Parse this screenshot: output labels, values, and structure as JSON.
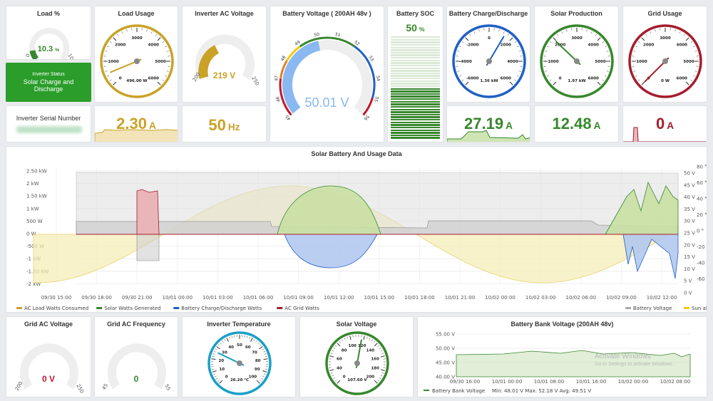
{
  "colors": {
    "gold": "#c9a227",
    "green": "#37872d",
    "blue": "#1f60c4",
    "red": "#a51d2d",
    "cyan": "#1a9fc8",
    "orange": "#e67e22",
    "statusBg": "#2a9d2a",
    "yellowFill": "#f2e9a8",
    "greenFill": "#c9dfa3",
    "blueFill": "#aec5ef",
    "redFill": "#e9b5b8",
    "grayFill": "#d9d9d9"
  },
  "load_pct": {
    "title": "Load %",
    "value": "10.3",
    "unit": "%",
    "min": "0",
    "max": "100",
    "fraction": 0.103
  },
  "inverter_status": {
    "label": "Inverter Status",
    "value": "Solar Charge and Discharge"
  },
  "serial": {
    "title": "Inverter Serial Number"
  },
  "load_usage": {
    "title": "Load Usage",
    "readout": "496.00 W",
    "scale": [
      "0",
      "1000",
      "2000",
      "3000",
      "4000",
      "5000",
      "6000"
    ],
    "value": 496
  },
  "load_current": {
    "value": "2.30",
    "unit": "A"
  },
  "inverter_ac_voltage": {
    "title": "Inverter AC Voltage",
    "value": "219 V",
    "min": "200",
    "max": "250",
    "fraction": 0.38
  },
  "ac_freq_stat": {
    "value": "50",
    "unit": "Hz"
  },
  "battery_voltage": {
    "title": "Battery Voltage ( 200AH 48v )",
    "value": "50.01 V",
    "ticks": [
      "45",
      "46",
      "47",
      "48",
      "49",
      "50",
      "51",
      "52",
      "53",
      "54",
      "55",
      "56"
    ]
  },
  "battery_soc": {
    "title": "Battery SOC",
    "value": "50",
    "unit": "%",
    "fraction": 0.5
  },
  "battery_charge": {
    "title": "Battery Charge/Discharge",
    "readout": "1.36 kW",
    "scale": [
      "-6000",
      "-4000",
      "-2000",
      "0",
      "2000",
      "4000",
      "6000"
    ],
    "value": 1360
  },
  "battery_current": {
    "value": "27.19",
    "unit": "A"
  },
  "solar_production": {
    "title": "Solar Production",
    "readout": "1.97 kW",
    "scale": [
      "0",
      "1000",
      "2000",
      "3000",
      "4000",
      "5000",
      "6000"
    ],
    "value": 1970
  },
  "solar_current": {
    "value": "12.48",
    "unit": "A"
  },
  "grid_usage": {
    "title": "Grid Usage",
    "readout": "0 W",
    "scale": [
      "0",
      "1000",
      "2000",
      "3000",
      "4000",
      "5000",
      "6000"
    ],
    "value": 0
  },
  "grid_current": {
    "value": "0",
    "unit": "A"
  },
  "main_chart": {
    "title": "Solar Battery And Usage Data",
    "y_left": [
      "2.50 kW",
      "2 kW",
      "1.50 kW",
      "1 kW",
      "500 W",
      "0 W",
      "-500 W",
      "-1 kW",
      "-1.50 kW",
      "-2 kW"
    ],
    "y_right_v": [
      "50 V",
      "45 V",
      "40 V",
      "35 V",
      "30 V",
      "25 V",
      "20 V",
      "15 V",
      "10 V",
      "5 V",
      "0 V"
    ],
    "y_right_deg": [
      "80 °",
      "60 °",
      "40 °",
      "20 °",
      "0 °",
      "-20 °",
      "-40 °",
      "-60 °"
    ],
    "x_ticks": [
      "09/30 15:00",
      "09/30 18:00",
      "09/30 21:00",
      "10/01 00:00",
      "10/01 03:00",
      "10/01 06:00",
      "10/01 09:00",
      "10/01 12:00",
      "10/01 15:00",
      "10/01 18:00",
      "10/01 21:00",
      "10/02 00:00",
      "10/02 03:00",
      "10/02 06:00",
      "10/02 09:00",
      "10/02 12:00"
    ],
    "legend_left": [
      "AC Load Watts Consumed",
      "Solar Watts Generated",
      "Battery Charge/Discharge Watts",
      "AC Grid Watts"
    ],
    "legend_right": [
      "Battery Voltage",
      "Sun altitude"
    ]
  },
  "grid_ac_voltage": {
    "title": "Grid AC Voltage",
    "value": "0 V",
    "min": "200",
    "max": "250",
    "fraction": 0
  },
  "grid_ac_freq": {
    "title": "Grid AC Frequency",
    "value": "0",
    "min": "45",
    "max": "55",
    "fraction": 0
  },
  "inverter_temp": {
    "title": "Inverter Temperature",
    "readout": "26.20 °C",
    "scale": [
      "0",
      "10",
      "20",
      "30",
      "40",
      "50",
      "60",
      "70",
      "80",
      "90",
      "100"
    ],
    "value": 26.2
  },
  "solar_voltage": {
    "title": "Solar Voltage",
    "readout": "107.60 V",
    "scale": [
      "0",
      "40",
      "60",
      "80",
      "100",
      "120",
      "140",
      "160",
      "180",
      "200"
    ],
    "value": 107.6
  },
  "bank_voltage": {
    "title": "Battery Bank Voltage (200AH 48v)",
    "y": [
      "55.00 V",
      "50.00 V",
      "45.00 V",
      "40.00 V"
    ],
    "x": [
      "09/30 16:00",
      "10/01 00:00",
      "10/01 08:00",
      "10/01 16:00",
      "10/02 00:00",
      "10/02 08:00"
    ],
    "legend": "Battery Bank Voltage",
    "stats": "Min: 48.01 V  Max: 52.18 V  Avg: 49.51 V"
  },
  "watermark": {
    "line1": "Activate Windows",
    "line2": "Go to Settings to activate Windows."
  }
}
